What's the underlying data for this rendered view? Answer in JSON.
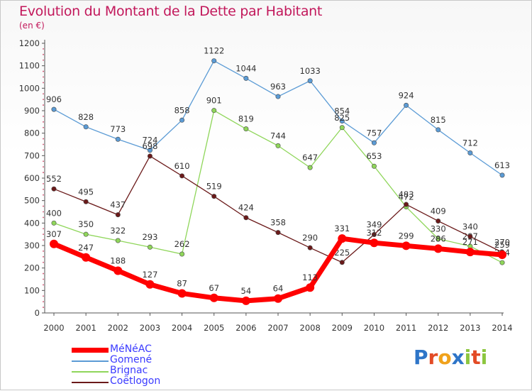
{
  "chart_data": {
    "type": "line",
    "title": "Evolution du Montant de la Dette par Habitant",
    "unit": "(en €)",
    "x": [
      "2000",
      "2001",
      "2002",
      "2003",
      "2004",
      "2005",
      "2006",
      "2007",
      "2008",
      "2009",
      "2010",
      "2011",
      "2012",
      "2013",
      "2014"
    ],
    "ylim": [
      0,
      1200
    ],
    "yticks": [
      0,
      100,
      200,
      300,
      400,
      500,
      600,
      700,
      800,
      900,
      1000,
      1100,
      1200
    ],
    "grid": false,
    "legend_placement": "bottom-left",
    "series": [
      {
        "name": "Gomené",
        "color": "#5b9bd5",
        "width": 1.3,
        "values": [
          906,
          828,
          773,
          724,
          858,
          1122,
          1044,
          963,
          1033,
          854,
          757,
          924,
          815,
          712,
          613
        ]
      },
      {
        "name": "Brignac",
        "color": "#8fd65a",
        "width": 1.3,
        "values": [
          400,
          350,
          322,
          293,
          262,
          901,
          819,
          744,
          647,
          825,
          653,
          472,
          330,
          297,
          224
        ]
      },
      {
        "name": "Coëtlogon",
        "color": "#6b1a1a",
        "width": 1.3,
        "values": [
          552,
          495,
          437,
          698,
          610,
          519,
          424,
          358,
          290,
          225,
          349,
          483,
          409,
          340,
          270
        ]
      },
      {
        "name": "MéNéAC",
        "color": "#ff0000",
        "width": 7,
        "values": [
          307,
          247,
          188,
          127,
          87,
          67,
          54,
          64,
          113,
          331,
          312,
          299,
          286,
          271,
          259
        ]
      }
    ],
    "legend": [
      "MéNéAC",
      "Gomené",
      "Brignac",
      "Coëtlogon"
    ]
  },
  "brand": {
    "letters": [
      "P",
      "r",
      "o",
      "x",
      "i",
      "t",
      "i"
    ],
    "colors": [
      "#2e75c8",
      "#e34b26",
      "#f0a21b",
      "#2e75c8",
      "#8cc63f",
      "#e34b26",
      "#8cc63f"
    ]
  }
}
